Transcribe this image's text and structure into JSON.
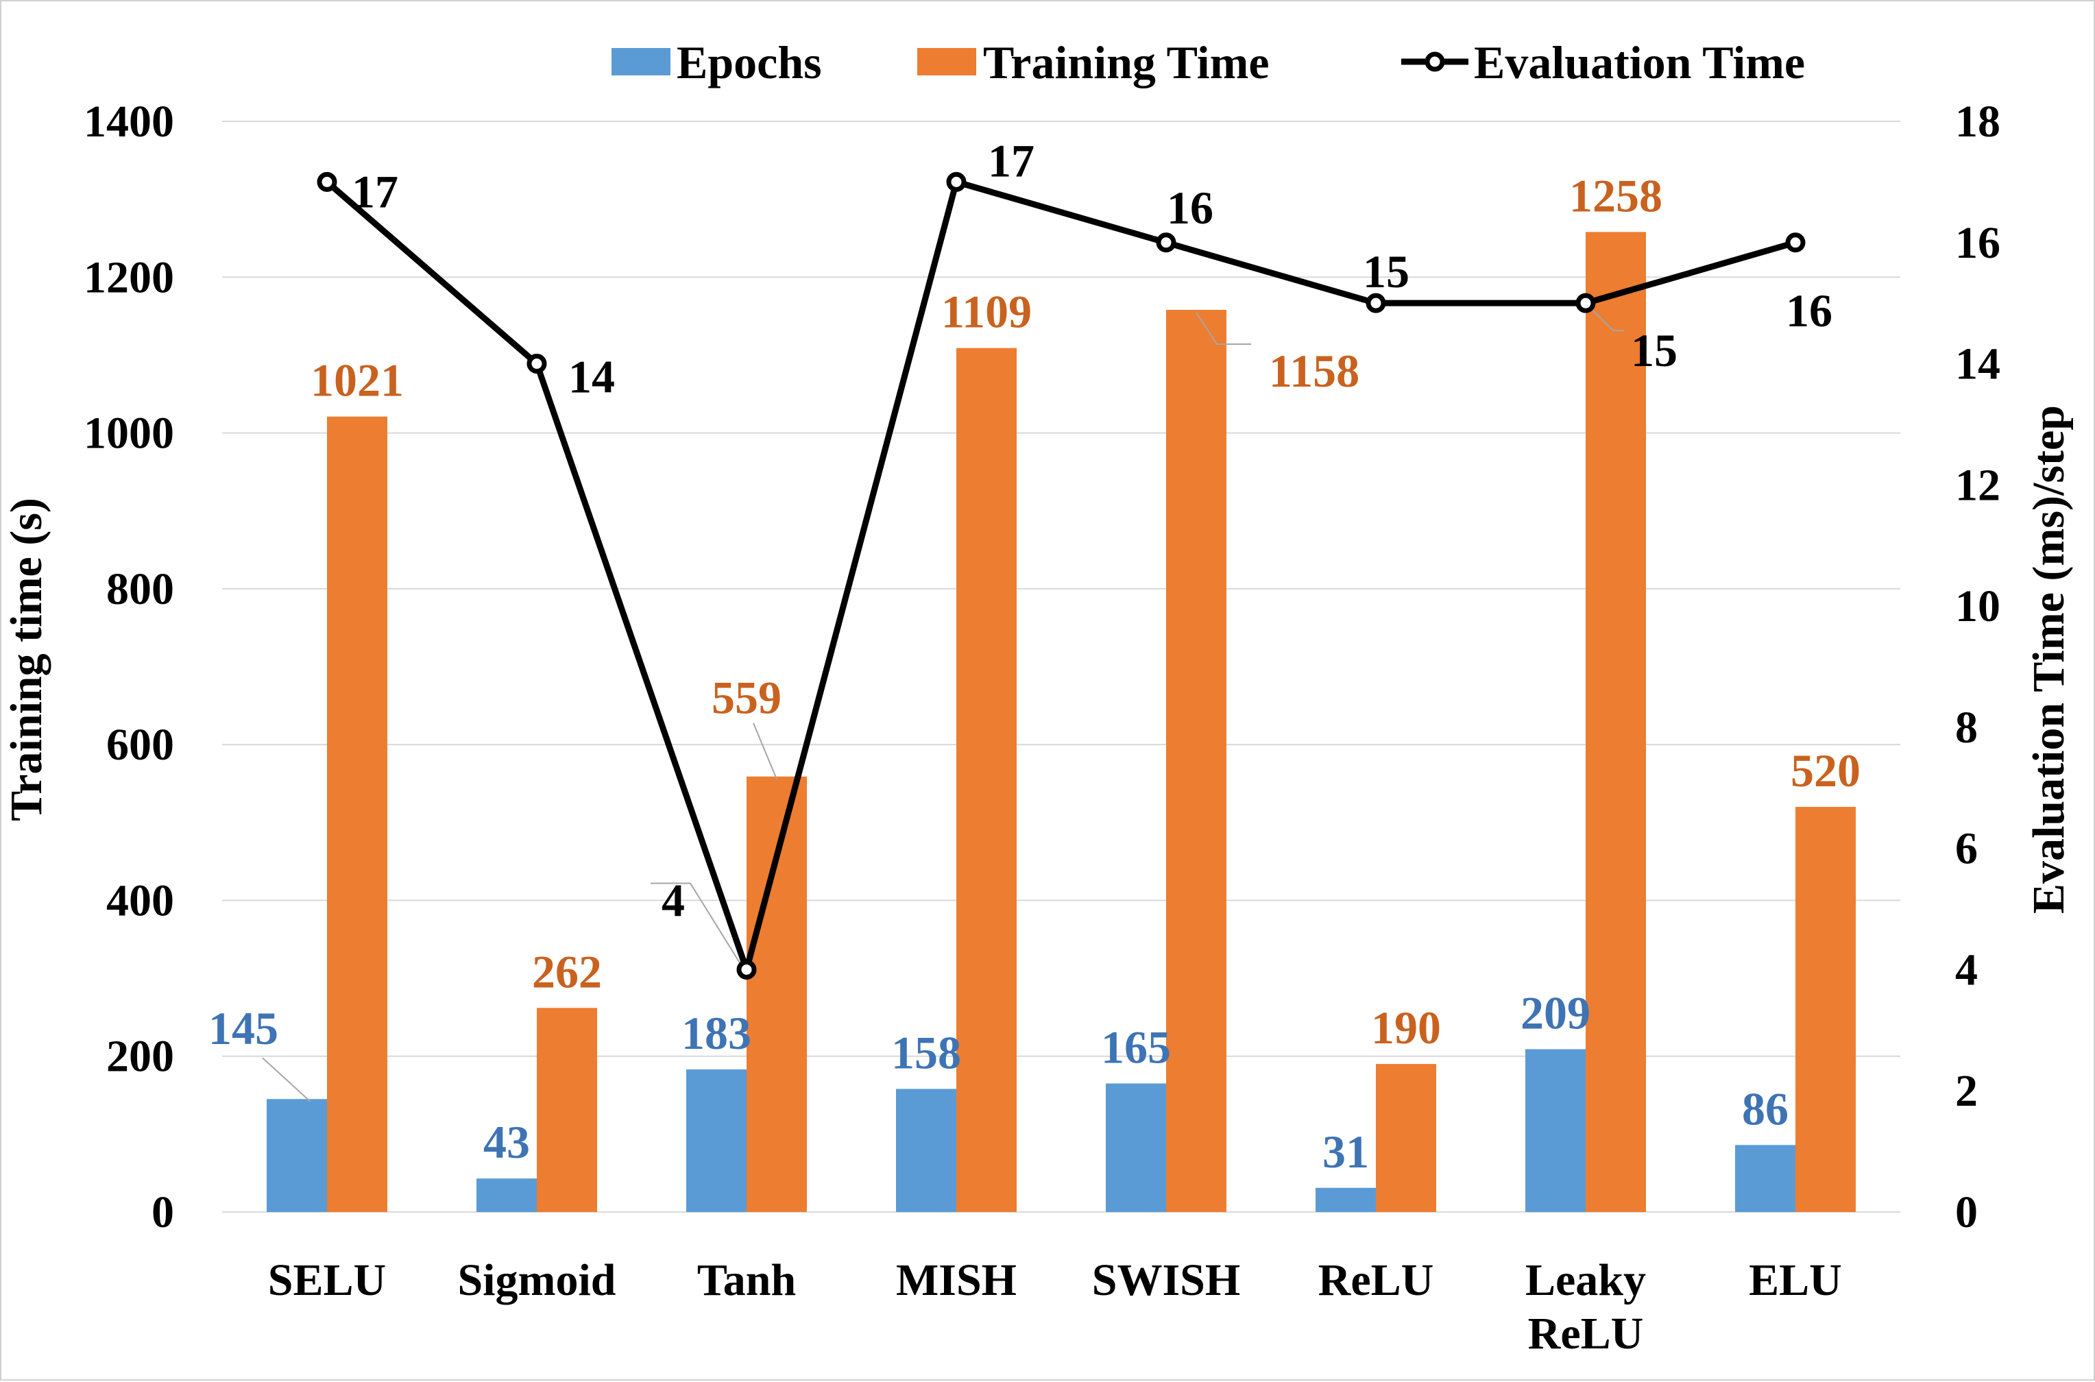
{
  "chart_data": {
    "type": "bar",
    "categories": [
      "SELU",
      "Sigmoid",
      "Tanh",
      "MISH",
      "SWISH",
      "ReLU",
      "Leaky ReLU",
      "ELU"
    ],
    "series": [
      {
        "name": "Epochs",
        "kind": "bar",
        "axis": "left",
        "color": "#5b9bd5",
        "values": [
          145,
          43,
          183,
          158,
          165,
          31,
          209,
          86
        ]
      },
      {
        "name": "Training Time",
        "kind": "bar",
        "axis": "left",
        "color": "#ed7d31",
        "values": [
          1021,
          262,
          559,
          1109,
          1158,
          190,
          1258,
          520
        ]
      },
      {
        "name": "Evaluation Time",
        "kind": "line",
        "axis": "right",
        "color": "#000000",
        "values": [
          17,
          14,
          4,
          17,
          16,
          15,
          15,
          16
        ]
      }
    ],
    "ylabel": "Training time (s)",
    "y2label": "Evaluation Time (ms)/step",
    "ylim": [
      0,
      1400
    ],
    "y2lim": [
      0,
      18
    ],
    "yticks": [
      "0",
      "200",
      "400",
      "600",
      "800",
      "1000",
      "1200",
      "1400"
    ],
    "y2ticks": [
      "0",
      "2",
      "4",
      "6",
      "8",
      "10",
      "12",
      "14",
      "16",
      "18"
    ],
    "grid": true,
    "legend_position": "top-right",
    "label_colors": {
      "Epochs": "#3e74b4",
      "Training Time": "#c9621f",
      "Evaluation Time": "#000000"
    }
  }
}
